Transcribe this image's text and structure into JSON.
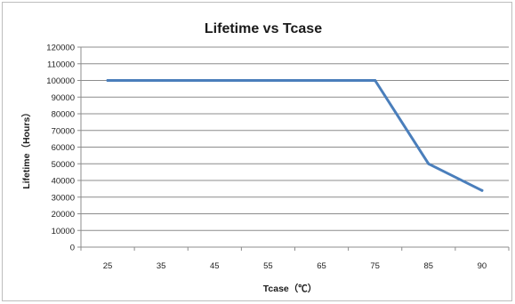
{
  "chart_data": {
    "type": "line",
    "title": "Lifetime vs Tcase",
    "xlabel": "Tcase（℃）",
    "ylabel": "Lifetime（Hours）",
    "categories": [
      "25",
      "35",
      "45",
      "55",
      "65",
      "75",
      "85",
      "90"
    ],
    "values": [
      100000,
      100000,
      100000,
      100000,
      100000,
      100000,
      50000,
      34000
    ],
    "ylim": [
      0,
      120000
    ],
    "yticks": [
      0,
      10000,
      20000,
      30000,
      40000,
      50000,
      60000,
      70000,
      80000,
      90000,
      100000,
      110000,
      120000
    ],
    "grid": true,
    "colors": {
      "line": "#4a7ebb",
      "grid": "#8c8c8c",
      "axis": "#8c8c8c"
    }
  }
}
